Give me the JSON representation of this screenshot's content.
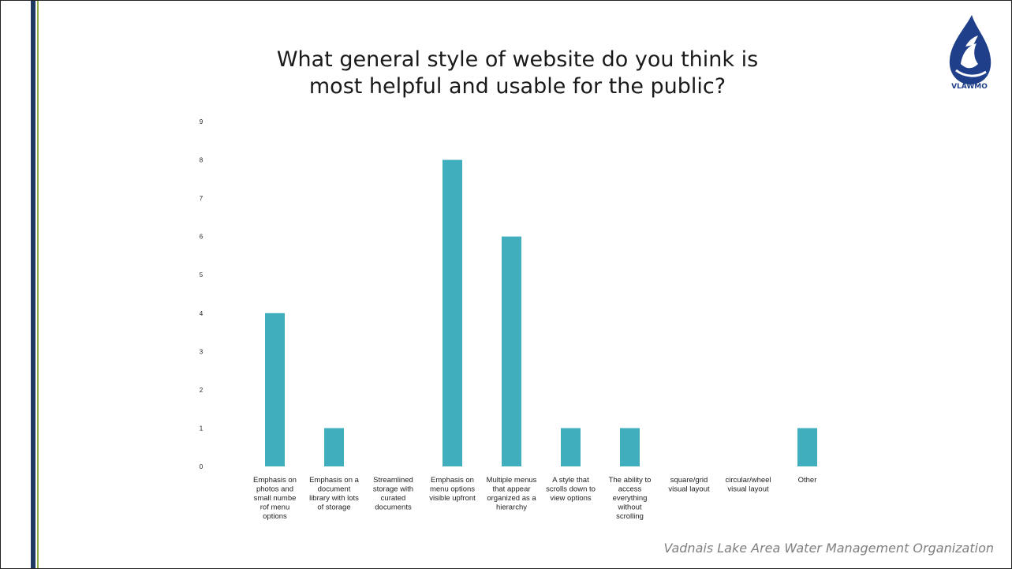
{
  "slide": {
    "title_line1": "What general style of website do you think is",
    "title_line2": "most helpful and usable for the public?",
    "logo_text": "VLAWMO",
    "footer": "Vadnais Lake Area Water Management Organization",
    "accent_colors": {
      "navy": "#1f3864",
      "green": "#8db04a"
    }
  },
  "chart_data": {
    "type": "bar",
    "categories": [
      [
        "Emphasis on",
        "photos and",
        "small numbe",
        "rof menu",
        "options"
      ],
      [
        "Emphasis on a",
        "document",
        "library with lots",
        "of storage"
      ],
      [
        "Streamlined",
        "storage with",
        "curated",
        "documents"
      ],
      [
        "Emphasis on",
        "menu options",
        "visible upfront"
      ],
      [
        "Multiple menus",
        "that appear",
        "organized as a",
        "hierarchy"
      ],
      [
        "A style that",
        "scrolls down to",
        "view options"
      ],
      [
        "The ability to",
        "access",
        "everything",
        "without",
        "scrolling"
      ],
      [
        "square/grid",
        "visual layout"
      ],
      [
        "circular/wheel",
        "visual layout"
      ],
      [
        "Other"
      ]
    ],
    "values": [
      4,
      1,
      0,
      8,
      6,
      1,
      1,
      0,
      0,
      1
    ],
    "yticks": [
      "0",
      "1",
      "2",
      "3",
      "4",
      "5",
      "6",
      "7",
      "8",
      "9"
    ],
    "ylim": [
      0,
      9
    ],
    "grid": false,
    "legend": "none",
    "bar_color": "#41aebe"
  }
}
